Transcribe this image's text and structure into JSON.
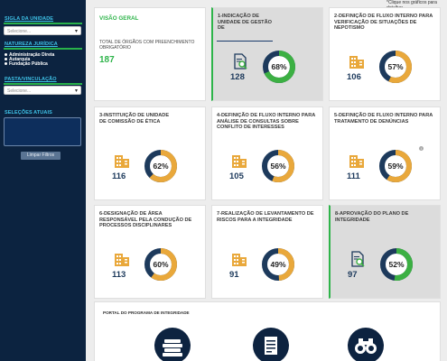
{
  "sidebar": {
    "sigla_label": "SIGLA DA UNIDADE",
    "sigla_placeholder": "Selecione...",
    "natureza_label": "NATUREZA JURÍDICA",
    "natureza_options": [
      "Administração Direta",
      "Autarquia",
      "Fundação Pública"
    ],
    "pasta_label": "PASTA/VINCULAÇÃO",
    "pasta_placeholder": "Selecione...",
    "selecoes_label": "SELEÇÕES ATUAIS",
    "limpar_button": "Limpar Filtros"
  },
  "notice": "*Clique nos gráficos para detalhar",
  "overview": {
    "title": "VISÃO GERAL",
    "description": "TOTAL DE ÓRGÃOS COM PREENCHIMENTO OBRIGATÓRIO",
    "total": "187"
  },
  "cards": [
    {
      "title": "1-INDICAÇÃO DE UNIDADE DE GESTÃO DE",
      "count": "128",
      "percent": "68%",
      "value": 0.68,
      "highlight": true,
      "icon": "document-search-icon",
      "color": "#3cb043"
    },
    {
      "title": "2-DEFINIÇÃO DE FLUXO INTERNO PARA VERIFICAÇÃO DE SITUAÇÕES DE NEPOTISMO",
      "count": "106",
      "percent": "57%",
      "value": 0.57,
      "highlight": false,
      "icon": "building-icon",
      "color": "#e9a83b"
    },
    {
      "title": "3-INSTITUIÇÃO DE UNIDADE DE COMISSÃO DE ÉTICA",
      "count": "116",
      "percent": "62%",
      "value": 0.62,
      "highlight": false,
      "icon": "building-icon",
      "color": "#e9a83b"
    },
    {
      "title": "4-DEFINIÇÃO DE FLUXO INTERNO PARA ANÁLISE DE CONSULTAS SOBRE CONFLITO DE INTERESSES",
      "count": "105",
      "percent": "56%",
      "value": 0.56,
      "highlight": false,
      "icon": "building-icon",
      "color": "#e9a83b"
    },
    {
      "title": "5-DEFINIÇÃO DE FLUXO INTERNO PARA TRATAMENTO DE DENÚNCIAS",
      "count": "111",
      "percent": "59%",
      "value": 0.59,
      "highlight": false,
      "icon": "building-icon",
      "color": "#e9a83b"
    },
    {
      "title": "6-DESIGNAÇÃO DE ÁREA RESPONSÁVEL PELA CONDUÇÃO DE PROCESSOS DISCIPLINARES",
      "count": "113",
      "percent": "60%",
      "value": 0.6,
      "highlight": false,
      "icon": "building-icon",
      "color": "#e9a83b"
    },
    {
      "title": "7-REALIZAÇÃO DE LEVANTAMENTO DE RISCOS PARA A INTEGRIDADE",
      "count": "91",
      "percent": "49%",
      "value": 0.49,
      "highlight": false,
      "icon": "building-icon",
      "color": "#e9a83b"
    },
    {
      "title": "8-APROVAÇÃO DO PLANO DE INTEGRIDADE",
      "count": "97",
      "percent": "52%",
      "value": 0.52,
      "highlight": true,
      "icon": "document-search-icon",
      "color": "#3cb043"
    }
  ],
  "portal": {
    "title": "PORTAL DO PROGRAMA DE INTEGRIDADE",
    "icons": [
      "books-icon",
      "document-icon",
      "binoculars-icon"
    ]
  }
}
